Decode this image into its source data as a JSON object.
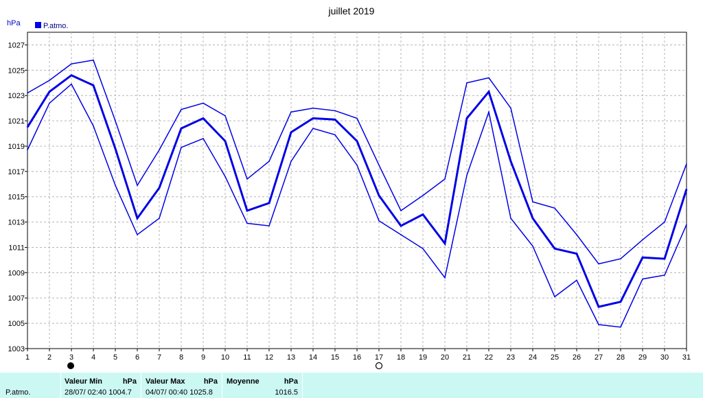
{
  "chart_data": {
    "type": "line",
    "title": "juillet 2019",
    "ylabel": "hPa",
    "ylim": [
      1003,
      1028
    ],
    "yticks": [
      1003,
      1005,
      1007,
      1009,
      1011,
      1013,
      1015,
      1017,
      1019,
      1021,
      1023,
      1025,
      1027
    ],
    "x": [
      1,
      2,
      3,
      4,
      5,
      6,
      7,
      8,
      9,
      10,
      11,
      12,
      13,
      14,
      15,
      16,
      17,
      18,
      19,
      20,
      21,
      22,
      23,
      24,
      25,
      26,
      27,
      28,
      29,
      30,
      31
    ],
    "grid": true,
    "legend": {
      "position": "top-left",
      "entries": [
        "P.atmo."
      ]
    },
    "series": [
      {
        "name": "P.atmo.",
        "role": "max",
        "values": [
          1023.2,
          1024.2,
          1025.5,
          1025.8,
          1021.0,
          1015.9,
          1018.7,
          1021.9,
          1022.4,
          1021.4,
          1016.4,
          1017.8,
          1021.7,
          1022.0,
          1021.8,
          1021.2,
          1017.5,
          1013.9,
          1015.1,
          1016.4,
          1024.0,
          1024.4,
          1022.0,
          1014.6,
          1014.1,
          1012.0,
          1009.7,
          1010.1,
          1011.6,
          1013.0,
          1017.6
        ]
      },
      {
        "name": "P.atmo.",
        "role": "mean",
        "values": [
          1020.5,
          1023.3,
          1024.6,
          1023.8,
          1018.8,
          1013.3,
          1015.7,
          1020.4,
          1021.2,
          1019.4,
          1013.9,
          1014.5,
          1020.1,
          1021.2,
          1021.1,
          1019.4,
          1015.1,
          1012.7,
          1013.6,
          1011.3,
          1021.2,
          1023.3,
          1017.8,
          1013.3,
          1010.9,
          1010.5,
          1006.3,
          1006.7,
          1010.2,
          1010.1,
          1015.6
        ]
      },
      {
        "name": "P.atmo.",
        "role": "min",
        "values": [
          1018.7,
          1022.4,
          1023.9,
          1020.6,
          1015.9,
          1012.0,
          1013.3,
          1018.9,
          1019.6,
          1016.6,
          1012.9,
          1012.7,
          1017.8,
          1020.4,
          1019.9,
          1017.5,
          1013.1,
          1012.0,
          1010.9,
          1008.6,
          1016.7,
          1021.7,
          1013.3,
          1011.1,
          1007.1,
          1008.4,
          1004.9,
          1004.7,
          1008.5,
          1008.8,
          1012.8
        ]
      }
    ],
    "moon_markers": [
      {
        "day": 3,
        "symbol": "new-moon-icon"
      },
      {
        "day": 17,
        "symbol": "full-moon-icon"
      }
    ],
    "colors": {
      "series": "#0000e6",
      "grid": "#b4b4b4",
      "tick": "#000000"
    }
  },
  "stats": {
    "row_label": "P.atmo.",
    "min_header": "Valeur Min",
    "min_unit": "hPa",
    "min_value": "28/07/  02:40 1004.7",
    "max_header": "Valeur Max",
    "max_unit": "hPa",
    "max_value": "04/07/  00:40 1025.8",
    "mean_header": "Moyenne",
    "mean_unit": "hPa",
    "mean_value": "1016.5",
    "background": "#ccf8f4"
  }
}
